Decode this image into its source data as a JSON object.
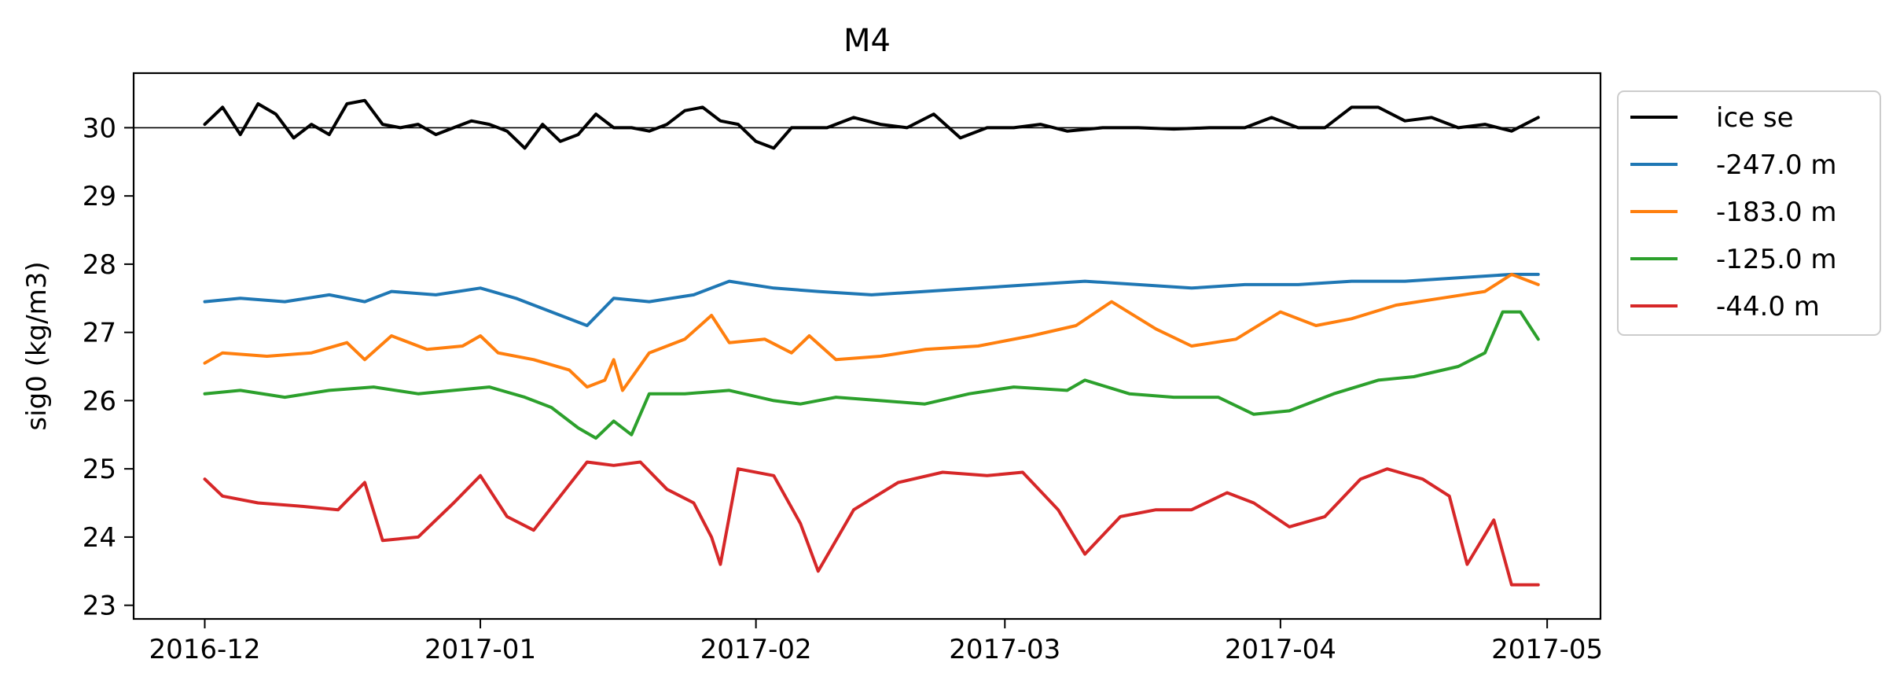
{
  "chart_data": {
    "type": "line",
    "title": "M4",
    "xlabel": "",
    "ylabel": "sig0 (kg/m3)",
    "x_ticks": [
      "2016-12",
      "2017-01",
      "2017-02",
      "2017-03",
      "2017-04",
      "2017-05"
    ],
    "y_ticks": [
      "23",
      "24",
      "25",
      "26",
      "27",
      "28",
      "29",
      "30"
    ],
    "xlim": [
      "2016-11-23",
      "2017-05-07"
    ],
    "ylim": [
      22.8,
      30.8
    ],
    "reference_line": 30,
    "legend_position": "outside-right-top",
    "series": [
      {
        "name": "ice se",
        "color": "#000000",
        "x": [
          "2016-12-01",
          "2016-12-03",
          "2016-12-05",
          "2016-12-07",
          "2016-12-09",
          "2016-12-11",
          "2016-12-13",
          "2016-12-15",
          "2016-12-17",
          "2016-12-19",
          "2016-12-21",
          "2016-12-23",
          "2016-12-25",
          "2016-12-27",
          "2016-12-29",
          "2016-12-31",
          "2017-01-02",
          "2017-01-04",
          "2017-01-06",
          "2017-01-08",
          "2017-01-10",
          "2017-01-12",
          "2017-01-14",
          "2017-01-16",
          "2017-01-18",
          "2017-01-20",
          "2017-01-22",
          "2017-01-24",
          "2017-01-26",
          "2017-01-28",
          "2017-01-30",
          "2017-02-01",
          "2017-02-03",
          "2017-02-05",
          "2017-02-07",
          "2017-02-09",
          "2017-02-12",
          "2017-02-15",
          "2017-02-18",
          "2017-02-21",
          "2017-02-24",
          "2017-02-27",
          "2017-03-02",
          "2017-03-05",
          "2017-03-08",
          "2017-03-12",
          "2017-03-16",
          "2017-03-20",
          "2017-03-24",
          "2017-03-28",
          "2017-03-31",
          "2017-04-03",
          "2017-04-06",
          "2017-04-09",
          "2017-04-12",
          "2017-04-15",
          "2017-04-18",
          "2017-04-21",
          "2017-04-24",
          "2017-04-27",
          "2017-04-30"
        ],
        "y": [
          30.05,
          30.3,
          29.9,
          30.35,
          30.2,
          29.85,
          30.05,
          29.9,
          30.35,
          30.4,
          30.05,
          30.0,
          30.05,
          29.9,
          30.0,
          30.1,
          30.05,
          29.95,
          29.7,
          30.05,
          29.8,
          29.9,
          30.2,
          30.0,
          30.0,
          29.95,
          30.05,
          30.25,
          30.3,
          30.1,
          30.05,
          29.8,
          29.7,
          30.0,
          30.0,
          30.0,
          30.15,
          30.05,
          30.0,
          30.2,
          29.85,
          30.0,
          30.0,
          30.05,
          29.95,
          30.0,
          30.0,
          29.98,
          30.0,
          30.0,
          30.15,
          30.0,
          30.0,
          30.3,
          30.3,
          30.1,
          30.15,
          30.0,
          30.05,
          29.95,
          30.15
        ]
      },
      {
        "name": "-247.0 m",
        "color": "#1f77b4",
        "x": [
          "2016-12-01",
          "2016-12-05",
          "2016-12-10",
          "2016-12-15",
          "2016-12-19",
          "2016-12-22",
          "2016-12-27",
          "2017-01-01",
          "2017-01-05",
          "2017-01-09",
          "2017-01-13",
          "2017-01-16",
          "2017-01-20",
          "2017-01-25",
          "2017-01-29",
          "2017-02-03",
          "2017-02-08",
          "2017-02-14",
          "2017-02-20",
          "2017-02-26",
          "2017-03-04",
          "2017-03-10",
          "2017-03-16",
          "2017-03-22",
          "2017-03-28",
          "2017-04-03",
          "2017-04-09",
          "2017-04-15",
          "2017-04-21",
          "2017-04-27",
          "2017-04-30"
        ],
        "y": [
          27.45,
          27.5,
          27.45,
          27.55,
          27.45,
          27.6,
          27.55,
          27.65,
          27.5,
          27.3,
          27.1,
          27.5,
          27.45,
          27.55,
          27.75,
          27.65,
          27.6,
          27.55,
          27.6,
          27.65,
          27.7,
          27.75,
          27.7,
          27.65,
          27.7,
          27.7,
          27.75,
          27.75,
          27.8,
          27.85,
          27.85
        ]
      },
      {
        "name": "-183.0 m",
        "color": "#ff7f0e",
        "x": [
          "2016-12-01",
          "2016-12-03",
          "2016-12-08",
          "2016-12-13",
          "2016-12-17",
          "2016-12-19",
          "2016-12-22",
          "2016-12-26",
          "2016-12-30",
          "2017-01-01",
          "2017-01-03",
          "2017-01-07",
          "2017-01-11",
          "2017-01-13",
          "2017-01-15",
          "2017-01-16",
          "2017-01-17",
          "2017-01-20",
          "2017-01-24",
          "2017-01-27",
          "2017-01-29",
          "2017-02-02",
          "2017-02-05",
          "2017-02-07",
          "2017-02-10",
          "2017-02-15",
          "2017-02-20",
          "2017-02-26",
          "2017-03-04",
          "2017-03-09",
          "2017-03-13",
          "2017-03-18",
          "2017-03-22",
          "2017-03-27",
          "2017-04-01",
          "2017-04-05",
          "2017-04-09",
          "2017-04-14",
          "2017-04-19",
          "2017-04-24",
          "2017-04-27",
          "2017-04-30"
        ],
        "y": [
          26.55,
          26.7,
          26.65,
          26.7,
          26.85,
          26.6,
          26.95,
          26.75,
          26.8,
          26.95,
          26.7,
          26.6,
          26.45,
          26.2,
          26.3,
          26.6,
          26.15,
          26.7,
          26.9,
          27.25,
          26.85,
          26.9,
          26.7,
          26.95,
          26.6,
          26.65,
          26.75,
          26.8,
          26.95,
          27.1,
          27.45,
          27.05,
          26.8,
          26.9,
          27.3,
          27.1,
          27.2,
          27.4,
          27.5,
          27.6,
          27.85,
          27.7
        ]
      },
      {
        "name": "-125.0 m",
        "color": "#2ca02c",
        "x": [
          "2016-12-01",
          "2016-12-05",
          "2016-12-10",
          "2016-12-15",
          "2016-12-20",
          "2016-12-25",
          "2016-12-29",
          "2017-01-02",
          "2017-01-06",
          "2017-01-09",
          "2017-01-12",
          "2017-01-14",
          "2017-01-16",
          "2017-01-18",
          "2017-01-20",
          "2017-01-24",
          "2017-01-29",
          "2017-02-03",
          "2017-02-06",
          "2017-02-10",
          "2017-02-15",
          "2017-02-20",
          "2017-02-25",
          "2017-03-02",
          "2017-03-08",
          "2017-03-10",
          "2017-03-15",
          "2017-03-20",
          "2017-03-25",
          "2017-03-29",
          "2017-04-02",
          "2017-04-07",
          "2017-04-12",
          "2017-04-16",
          "2017-04-21",
          "2017-04-24",
          "2017-04-26",
          "2017-04-28",
          "2017-04-30"
        ],
        "y": [
          26.1,
          26.15,
          26.05,
          26.15,
          26.2,
          26.1,
          26.15,
          26.2,
          26.05,
          25.9,
          25.6,
          25.45,
          25.7,
          25.5,
          26.1,
          26.1,
          26.15,
          26.0,
          25.95,
          26.05,
          26.0,
          25.95,
          26.1,
          26.2,
          26.15,
          26.3,
          26.1,
          26.05,
          26.05,
          25.8,
          25.85,
          26.1,
          26.3,
          26.35,
          26.5,
          26.7,
          27.3,
          27.3,
          26.9
        ]
      },
      {
        "name": "-44.0 m",
        "color": "#d62728",
        "x": [
          "2016-12-01",
          "2016-12-03",
          "2016-12-07",
          "2016-12-12",
          "2016-12-16",
          "2016-12-19",
          "2016-12-21",
          "2016-12-25",
          "2016-12-29",
          "2017-01-01",
          "2017-01-04",
          "2017-01-07",
          "2017-01-10",
          "2017-01-13",
          "2017-01-16",
          "2017-01-19",
          "2017-01-22",
          "2017-01-25",
          "2017-01-27",
          "2017-01-28",
          "2017-01-30",
          "2017-02-03",
          "2017-02-06",
          "2017-02-08",
          "2017-02-12",
          "2017-02-17",
          "2017-02-22",
          "2017-02-27",
          "2017-03-03",
          "2017-03-07",
          "2017-03-10",
          "2017-03-14",
          "2017-03-18",
          "2017-03-22",
          "2017-03-26",
          "2017-03-29",
          "2017-04-02",
          "2017-04-06",
          "2017-04-10",
          "2017-04-13",
          "2017-04-17",
          "2017-04-20",
          "2017-04-22",
          "2017-04-25",
          "2017-04-27",
          "2017-04-30"
        ],
        "y": [
          24.85,
          24.6,
          24.5,
          24.45,
          24.4,
          24.8,
          23.95,
          24.0,
          24.5,
          24.9,
          24.3,
          24.1,
          24.6,
          25.1,
          25.05,
          25.1,
          24.7,
          24.5,
          24.0,
          23.6,
          25.0,
          24.9,
          24.2,
          23.5,
          24.4,
          24.8,
          24.95,
          24.9,
          24.95,
          24.4,
          23.75,
          24.3,
          24.4,
          24.4,
          24.65,
          24.5,
          24.15,
          24.3,
          24.85,
          25.0,
          24.85,
          24.6,
          23.6,
          24.25,
          23.3,
          23.3
        ]
      }
    ]
  }
}
